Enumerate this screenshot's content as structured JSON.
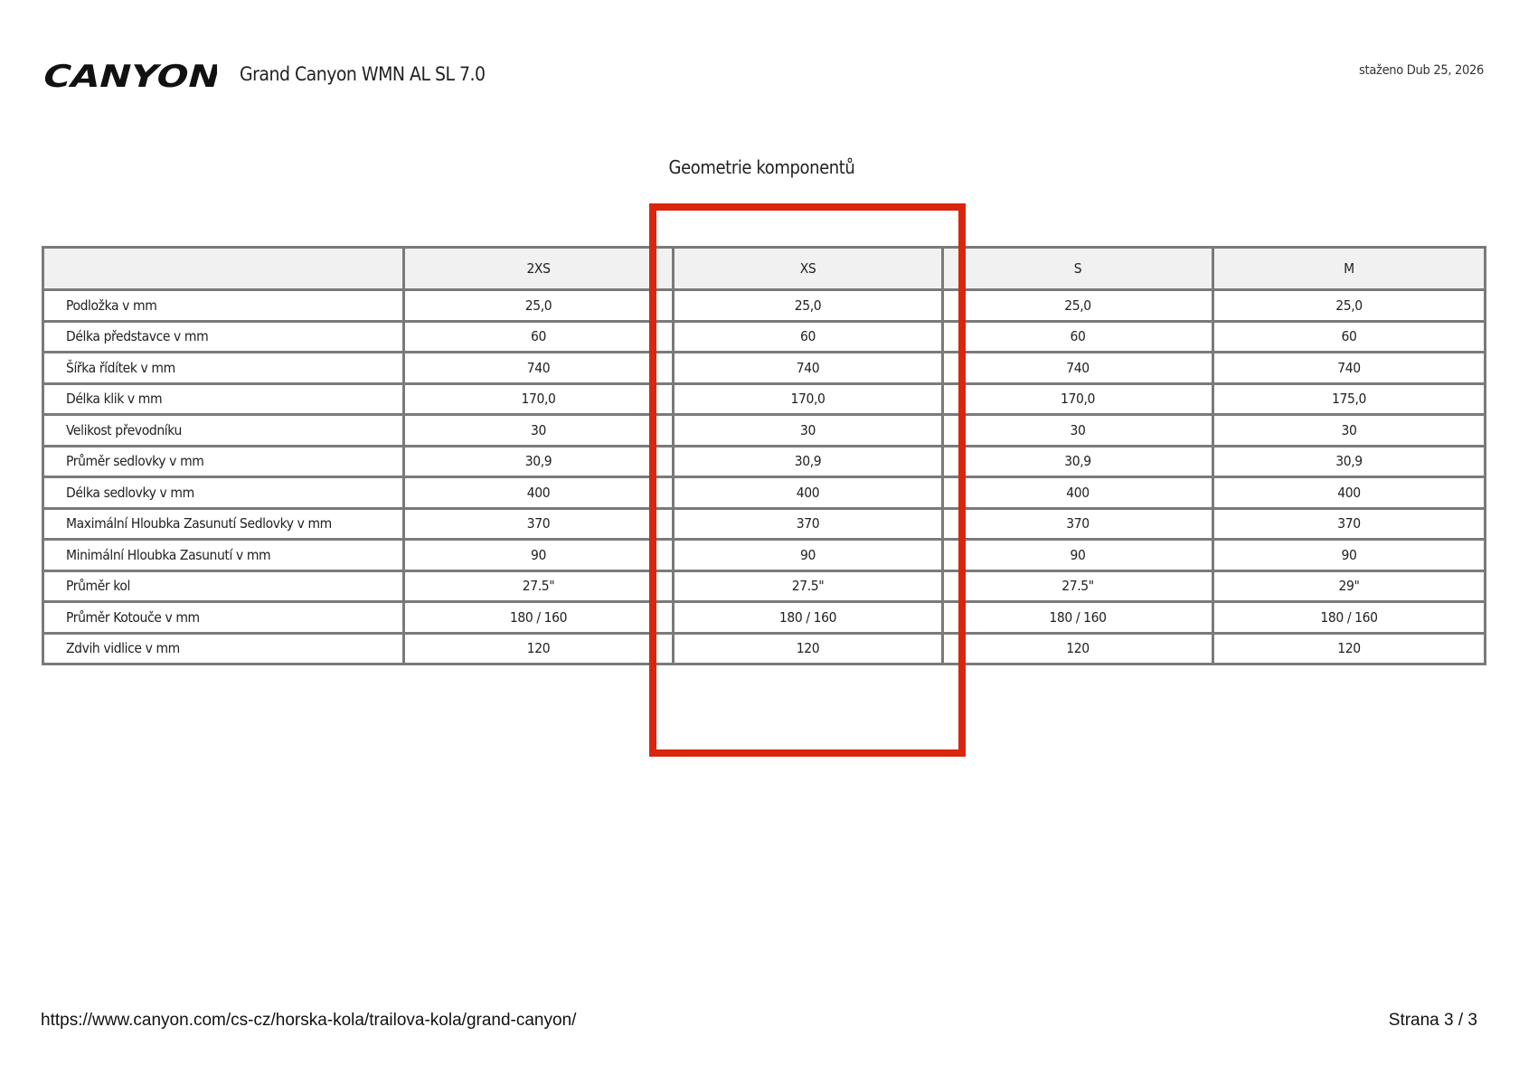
{
  "header": {
    "logo_text": "CANYON",
    "title": "Grand Canyon WMN AL SL 7.0",
    "date": "staženo Dub 25, 2026"
  },
  "section_title": "Geometrie komponentů",
  "table": {
    "columns": [
      "",
      "2XS",
      "XS",
      "S",
      "M"
    ],
    "rows": [
      {
        "label": "Podložka v mm",
        "values": [
          "25,0",
          "25,0",
          "25,0",
          "25,0"
        ]
      },
      {
        "label": "Délka představce v mm",
        "values": [
          "60",
          "60",
          "60",
          "60"
        ]
      },
      {
        "label": "Šířka řídítek v mm",
        "values": [
          "740",
          "740",
          "740",
          "740"
        ]
      },
      {
        "label": "Délka klik v mm",
        "values": [
          "170,0",
          "170,0",
          "170,0",
          "175,0"
        ]
      },
      {
        "label": "Velikost převodníku",
        "values": [
          "30",
          "30",
          "30",
          "30"
        ]
      },
      {
        "label": "Průměr sedlovky v mm",
        "values": [
          "30,9",
          "30,9",
          "30,9",
          "30,9"
        ]
      },
      {
        "label": "Délka sedlovky v mm",
        "values": [
          "400",
          "400",
          "400",
          "400"
        ]
      },
      {
        "label": "Maximální Hloubka Zasunutí Sedlovky v mm",
        "values": [
          "370",
          "370",
          "370",
          "370"
        ]
      },
      {
        "label": "Minimální Hloubka Zasunutí v mm",
        "values": [
          "90",
          "90",
          "90",
          "90"
        ]
      },
      {
        "label": "Průměr kol",
        "values": [
          "27.5\"",
          "27.5\"",
          "27.5\"",
          "29\""
        ]
      },
      {
        "label": "Průměr Kotouče v mm",
        "values": [
          "180 / 160",
          "180 / 160",
          "180 / 160",
          "180 / 160"
        ]
      },
      {
        "label": "Zdvih vidlice v mm",
        "values": [
          "120",
          "120",
          "120",
          "120"
        ]
      }
    ],
    "highlighted_column": "XS",
    "highlight_color": "#d9260e"
  },
  "footer": {
    "url": "https://www.canyon.com/cs-cz/horska-kola/trailova-kola/grand-canyon/",
    "page": "Strana 3 / 3"
  }
}
